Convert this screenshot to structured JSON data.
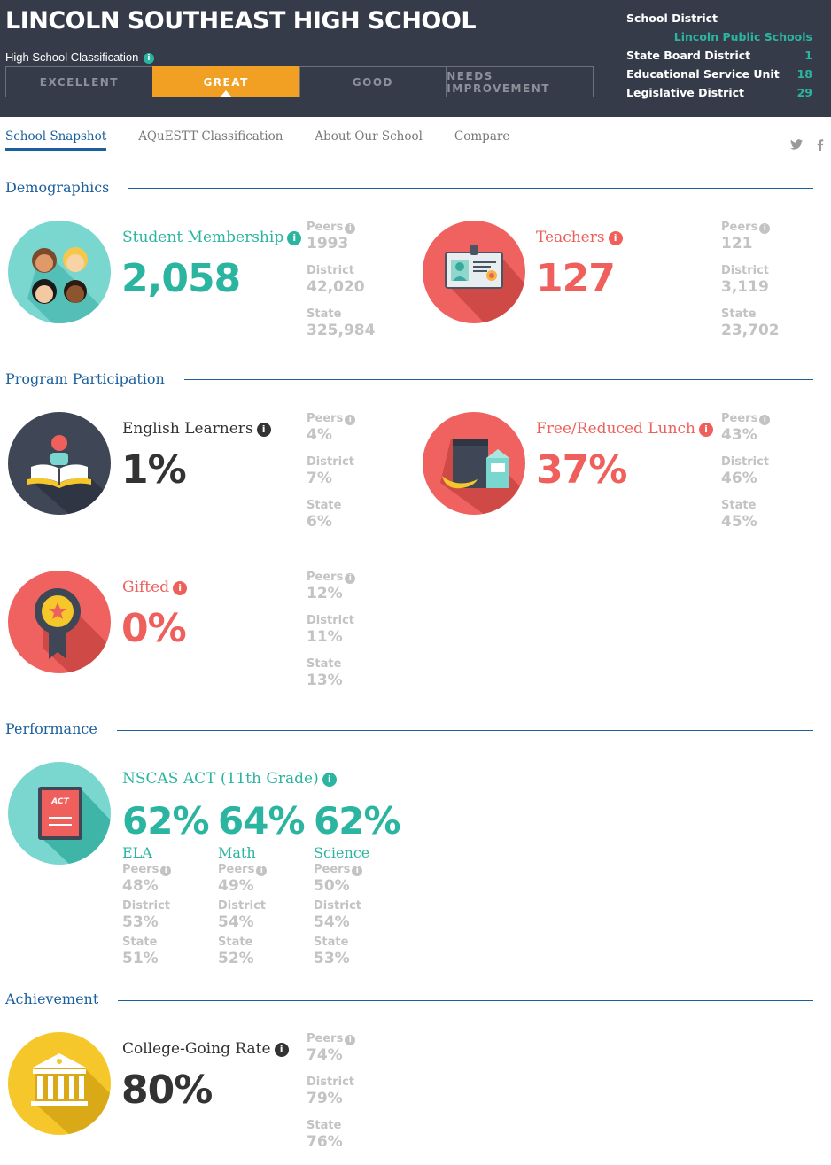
{
  "header": {
    "school_name": "LINCOLN SOUTHEAST HIGH SCHOOL",
    "classification_label": "High School Classification",
    "classification_options": [
      "EXCELLENT",
      "GREAT",
      "GOOD",
      "NEEDS IMPROVEMENT"
    ],
    "selected_classification": "GREAT",
    "district_info": [
      {
        "label": "School District",
        "value": ""
      },
      {
        "label": "",
        "value": "Lincoln Public Schools"
      },
      {
        "label": "State Board District",
        "value": "1"
      },
      {
        "label": "Educational Service Unit",
        "value": "18"
      },
      {
        "label": "Legislative District",
        "value": "29"
      }
    ]
  },
  "tabs": [
    "School Snapshot",
    "AQuESTT Classification",
    "About Our School",
    "Compare"
  ],
  "active_tab": "School Snapshot",
  "social": {
    "twitter": "twitter-icon",
    "facebook": "facebook-icon"
  },
  "labels": {
    "peers": "Peers",
    "district": "District",
    "state": "State",
    "info": "i"
  },
  "sections": {
    "demographics": "Demographics",
    "program": "Program Participation",
    "performance": "Performance",
    "achievement": "Achievement"
  },
  "stats": {
    "membership": {
      "label": "Student Membership",
      "value": "2,058",
      "peers": "1993",
      "district": "42,020",
      "state": "325,984",
      "icon": "students-icon",
      "color": "#2bb5a0"
    },
    "teachers": {
      "label": "Teachers",
      "value": "127",
      "peers": "121",
      "district": "3,119",
      "state": "23,702",
      "icon": "id-badge-icon",
      "color": "#ef5f5c"
    },
    "english": {
      "label": "English Learners",
      "value": "1%",
      "peers": "4%",
      "district": "7%",
      "state": "6%",
      "icon": "reading-book-icon",
      "color": "#333333"
    },
    "lunch": {
      "label": "Free/Reduced Lunch",
      "value": "37%",
      "peers": "43%",
      "district": "46%",
      "state": "45%",
      "icon": "lunch-bag-icon",
      "color": "#ef5f5c"
    },
    "gifted": {
      "label": "Gifted",
      "value": "0%",
      "peers": "12%",
      "district": "11%",
      "state": "13%",
      "icon": "award-ribbon-icon",
      "color": "#ef5f5c"
    },
    "college": {
      "label": "College-Going Rate",
      "value": "80%",
      "peers": "74%",
      "district": "79%",
      "state": "76%",
      "icon": "college-building-icon",
      "color": "#333333"
    }
  },
  "act": {
    "label": "NSCAS ACT (11th Grade)",
    "icon_text": "ACT",
    "subjects": [
      {
        "name": "ELA",
        "value": "62%",
        "peers": "48%",
        "district": "53%",
        "state": "51%"
      },
      {
        "name": "Math",
        "value": "64%",
        "peers": "49%",
        "district": "54%",
        "state": "52%"
      },
      {
        "name": "Science",
        "value": "62%",
        "peers": "50%",
        "district": "54%",
        "state": "53%"
      }
    ]
  }
}
